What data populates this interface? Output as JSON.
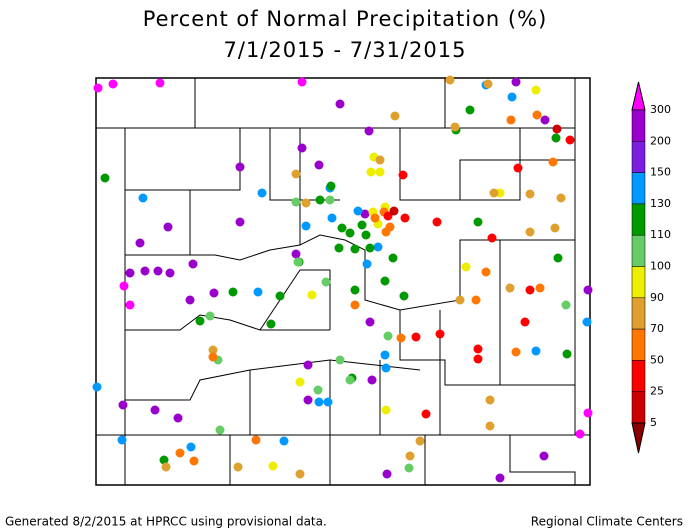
{
  "title": [
    "Percent of Normal Precipitation (%)",
    "7/1/2015 - 7/31/2015"
  ],
  "legend": {
    "labels": [
      300,
      200,
      150,
      130,
      110,
      100,
      90,
      70,
      50,
      25,
      5
    ],
    "colors": [
      "#ff00ff",
      "#9900cc",
      "#7a1ee0",
      "#0099ff",
      "#009900",
      "#66cc66",
      "#eeee00",
      "#e0a030",
      "#ff7700",
      "#ff0000",
      "#cc0000",
      "#880000"
    ]
  },
  "footer": {
    "left": "Generated 8/2/2015 at HPRCC using provisional data.",
    "right": "Regional Climate Centers"
  }
}
